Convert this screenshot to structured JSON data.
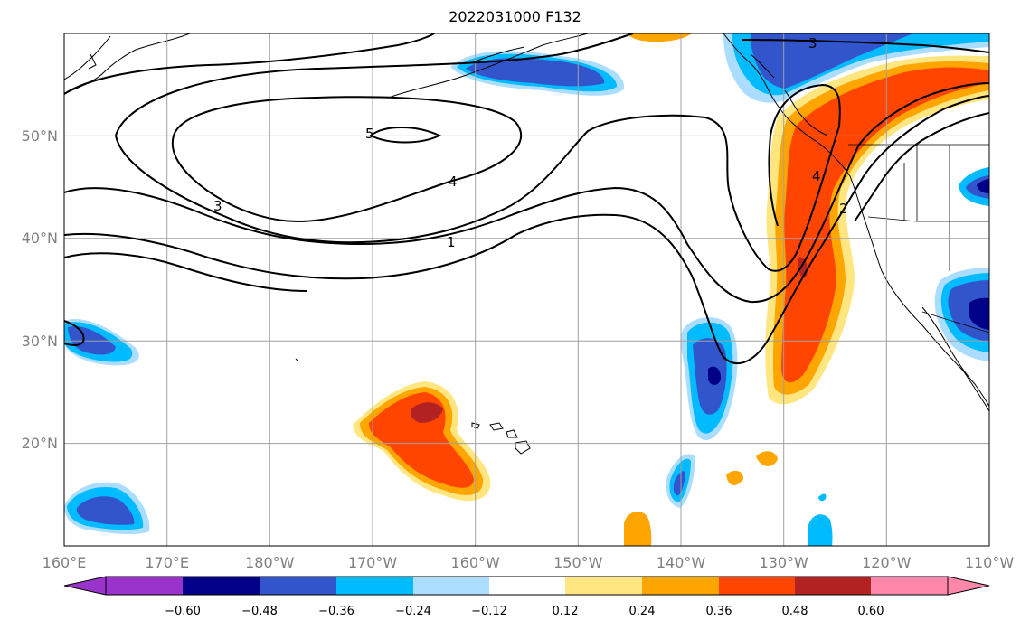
{
  "title": "2022031000 F132",
  "map": {
    "lon_labels": [
      "160°E",
      "170°E",
      "180°W",
      "170°W",
      "160°W",
      "150°W",
      "140°W",
      "130°W",
      "120°W",
      "110°W"
    ],
    "lat_labels": [
      "50°N",
      "40°N",
      "30°N",
      "20°N"
    ],
    "lon_range": [
      160,
      250
    ],
    "lat_range": [
      10,
      60
    ],
    "contour_labels": [
      "5",
      "4",
      "3",
      "1",
      "3",
      "4",
      "2"
    ]
  },
  "colorbar": {
    "ticks": [
      "−0.60",
      "−0.48",
      "−0.36",
      "−0.24",
      "−0.12",
      "0.12",
      "0.24",
      "0.36",
      "0.48",
      "0.60"
    ],
    "colors": [
      "#9933cc",
      "#000088",
      "#3355cc",
      "#00bbff",
      "#aaddff",
      "#ffffff",
      "#ffe680",
      "#ffa500",
      "#ff4500",
      "#b22222",
      "#ff88aa"
    ]
  }
}
